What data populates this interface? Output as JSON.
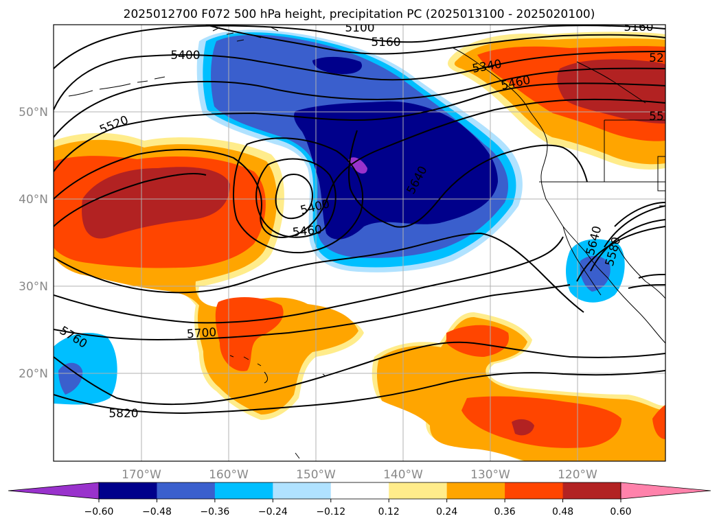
{
  "title": "2025012700 F072 500 hPa height, precipitation PC (2025013100 - 2025020100)",
  "lat_labels": [
    "50°N",
    "40°N",
    "30°N",
    "20°N"
  ],
  "lon_labels": [
    "170°W",
    "160°W",
    "150°W",
    "140°W",
    "130°W",
    "120°W"
  ],
  "colorbar": {
    "ticks": [
      "−0.60",
      "−0.48",
      "−0.36",
      "−0.24",
      "−0.12",
      "0.12",
      "0.24",
      "0.36",
      "0.48",
      "0.60"
    ],
    "colors": [
      "#9932cc",
      "#00008b",
      "#3a5fcd",
      "#00bfff",
      "#b0e2ff",
      "#ffffff",
      "#ffec8b",
      "#ffa500",
      "#ff4500",
      "#b22222",
      "#ff82ab"
    ]
  },
  "contour_labels": [
    "5100",
    "5160",
    "5160",
    "5400",
    "5520",
    "5400",
    "5460",
    "5640",
    "5700",
    "5760",
    "5820",
    "5340",
    "5460",
    "5640",
    "5580",
    "52",
    "55"
  ],
  "colors": {
    "coast": "#000000",
    "grid": "#b0b0b0",
    "contour": "#000000"
  }
}
